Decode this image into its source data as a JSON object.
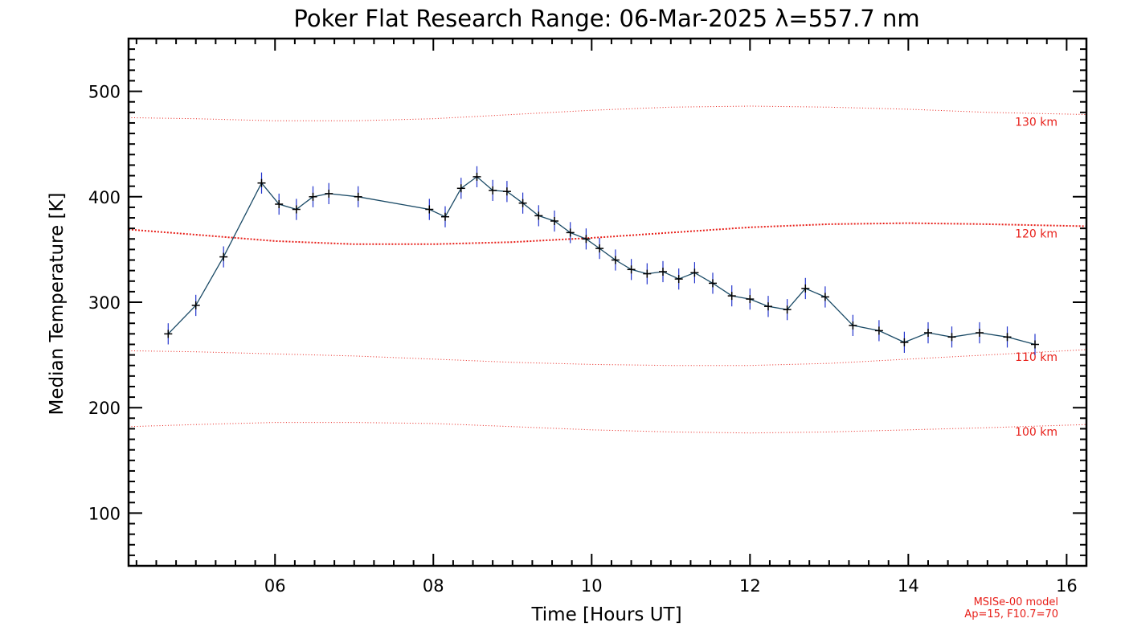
{
  "chart_data": {
    "type": "line",
    "title": "Poker Flat Research Range: 06-Mar-2025 λ=557.7 nm",
    "xlabel": "Time [Hours UT]",
    "ylabel": "Median Temperature [K]",
    "xlim": [
      4.15,
      16.25
    ],
    "ylim": [
      50,
      550
    ],
    "x_ticks": [
      {
        "value": 6,
        "label": "06"
      },
      {
        "value": 8,
        "label": "08"
      },
      {
        "value": 10,
        "label": "10"
      },
      {
        "value": 12,
        "label": "12"
      },
      {
        "value": 14,
        "label": "14"
      },
      {
        "value": 16,
        "label": "16"
      }
    ],
    "y_ticks": [
      {
        "value": 100,
        "label": "100"
      },
      {
        "value": 200,
        "label": "200"
      },
      {
        "value": 300,
        "label": "300"
      },
      {
        "value": 400,
        "label": "400"
      },
      {
        "value": 500,
        "label": "500"
      }
    ],
    "grid": false,
    "series": [
      {
        "color": "#1a4a66",
        "marker_color": "#000000",
        "error_color": "#2233cc",
        "error": 10,
        "x": [
          4.65,
          5.0,
          5.35,
          5.83,
          6.05,
          6.27,
          6.48,
          6.68,
          7.05,
          7.95,
          8.15,
          8.35,
          8.55,
          8.75,
          8.93,
          9.13,
          9.33,
          9.53,
          9.73,
          9.93,
          10.1,
          10.3,
          10.5,
          10.7,
          10.9,
          11.1,
          11.3,
          11.53,
          11.77,
          12.0,
          12.23,
          12.47,
          12.7,
          12.95,
          13.3,
          13.63,
          13.95,
          14.25,
          14.55,
          14.9,
          15.25,
          15.6
        ],
        "y": [
          270,
          297,
          343,
          413,
          393,
          388,
          400,
          403,
          400,
          388,
          381,
          408,
          419,
          406,
          405,
          394,
          382,
          377,
          366,
          360,
          351,
          340,
          331,
          327,
          329,
          322,
          328,
          318,
          306,
          303,
          296,
          293,
          313,
          305,
          278,
          273,
          262,
          271,
          267,
          271,
          267,
          260
        ]
      }
    ],
    "model_curves": [
      {
        "label": "130 km",
        "color": "#e8201a",
        "style": "dotted",
        "x": [
          4.15,
          5.0,
          6.0,
          7.0,
          8.0,
          9.0,
          10.0,
          11.0,
          12.0,
          13.0,
          14.0,
          15.0,
          16.25
        ],
        "y": [
          475,
          474,
          472,
          472,
          474,
          478,
          482,
          485,
          486,
          485,
          483,
          480,
          478
        ]
      },
      {
        "label": "120 km",
        "color": "#e8201a",
        "style": "dotted-bold",
        "x": [
          4.15,
          5.0,
          6.0,
          7.0,
          8.0,
          9.0,
          10.0,
          11.0,
          12.0,
          13.0,
          14.0,
          15.0,
          16.25
        ],
        "y": [
          369,
          364,
          358,
          355,
          355,
          357,
          361,
          366,
          371,
          374,
          375,
          374,
          372
        ]
      },
      {
        "label": "110 km",
        "color": "#e8201a",
        "style": "dotted",
        "x": [
          4.15,
          5.0,
          6.0,
          7.0,
          8.0,
          9.0,
          10.0,
          11.0,
          12.0,
          13.0,
          14.0,
          15.0,
          16.25
        ],
        "y": [
          254,
          253,
          251,
          249,
          246,
          243,
          241,
          240,
          240,
          242,
          246,
          250,
          255
        ]
      },
      {
        "label": "100 km",
        "color": "#e8201a",
        "style": "dotted",
        "x": [
          4.15,
          5.0,
          6.0,
          7.0,
          8.0,
          9.0,
          10.0,
          11.0,
          12.0,
          13.0,
          14.0,
          15.0,
          16.25
        ],
        "y": [
          182,
          184,
          186,
          186,
          185,
          182,
          179,
          177,
          176,
          177,
          179,
          181,
          184
        ]
      }
    ],
    "notes": [
      "MSISe-00 model",
      "Ap=15, F10.7=70"
    ]
  }
}
